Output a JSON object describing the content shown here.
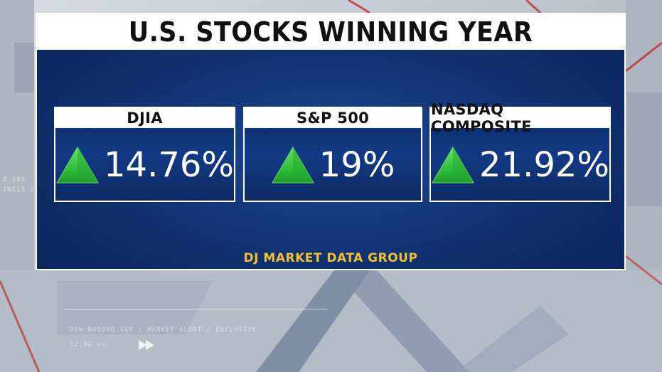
{
  "title": "U.S. STOCKS WINNING YEAR",
  "cards": [
    {
      "label": "DJIA",
      "value": "14.76%",
      "direction_icon": "up-arrow-icon",
      "change_pct": 14.76
    },
    {
      "label": "S&P 500",
      "value": "19%",
      "direction_icon": "up-arrow-icon",
      "change_pct": 19
    },
    {
      "label": "NASDAQ COMPOSITE",
      "value": "21.92%",
      "direction_icon": "up-arrow-icon",
      "change_pct": 21.92
    }
  ],
  "source": "DJ MARKET DATA GROUP",
  "background": {
    "ticker_line_1": "DOW NASDAQ S&P  /  MARKET ALERT  /  EXCLUSIVE",
    "ticker_line_2": "32.92 >>",
    "left_text_1": "4.663",
    "left_text_2": "INESS U"
  },
  "colors": {
    "panel": "#123476",
    "arrow": "#2fbf3a",
    "source_text": "#f2c12e",
    "title_bar": "#ffffff"
  }
}
